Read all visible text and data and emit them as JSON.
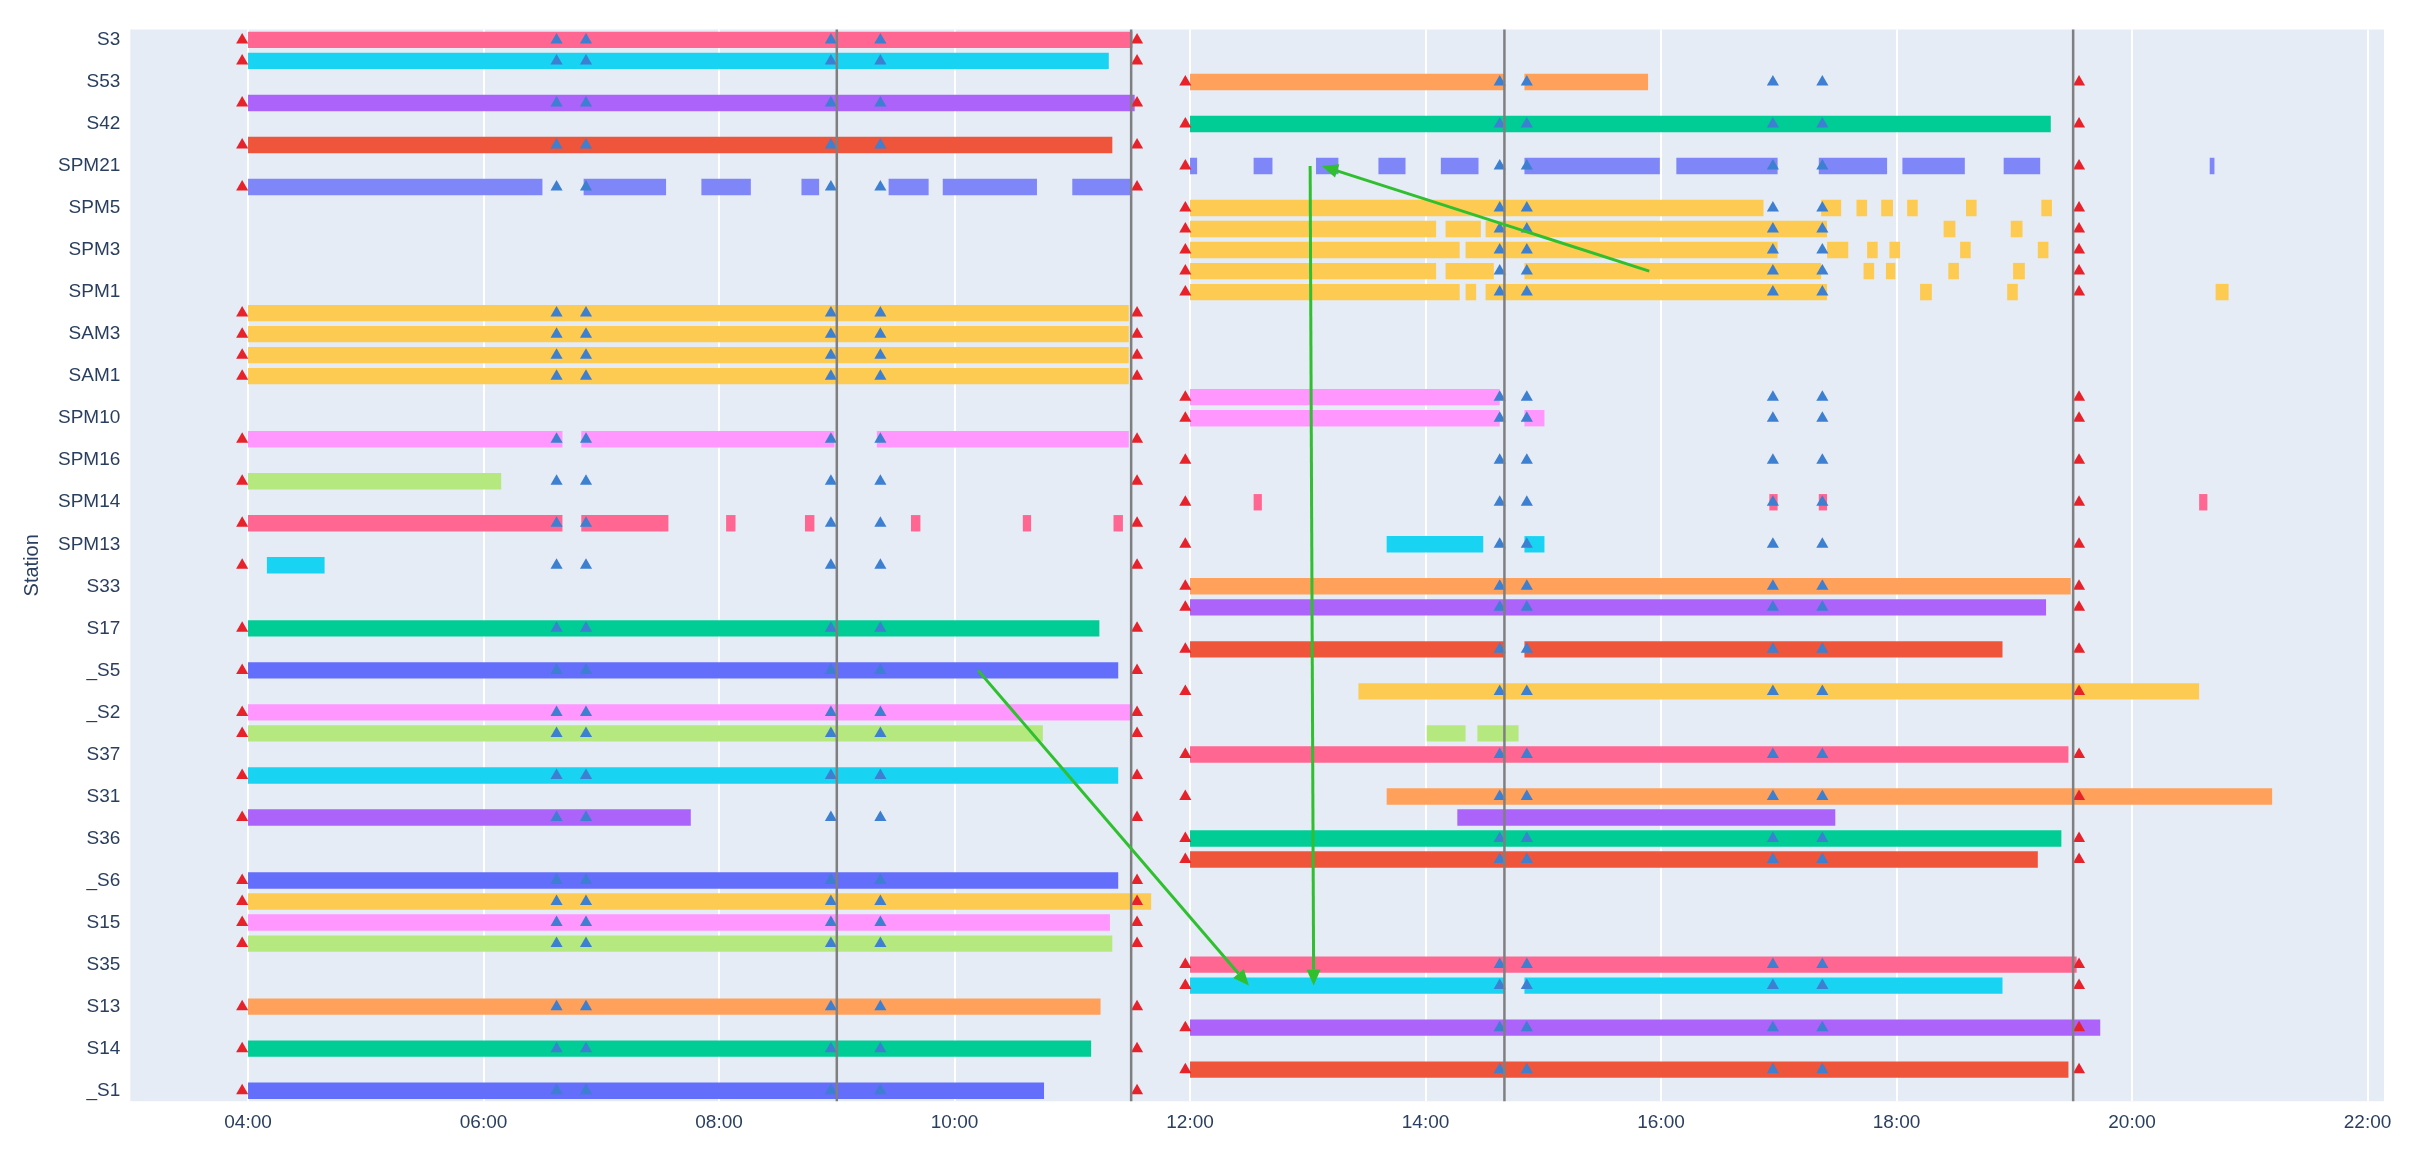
{
  "chart_data": {
    "type": "bar",
    "orientation": "horizontal",
    "ylabel": "Station",
    "grid": "x",
    "categories": [
      "S3",
      null,
      "S53",
      null,
      "S42",
      null,
      "SPM21",
      null,
      "SPM5",
      null,
      "SPM3",
      null,
      "SPM1",
      null,
      "SAM3",
      null,
      "SAM1",
      null,
      "SPM10",
      null,
      "SPM16",
      null,
      "SPM14",
      null,
      "SPM13",
      null,
      "S33",
      null,
      "S17",
      null,
      "_S5",
      null,
      "_S2",
      null,
      "S37",
      null,
      "S31",
      null,
      "S36",
      null,
      "_S6",
      null,
      "S15",
      null,
      "S35",
      null,
      "S13",
      null,
      "S14",
      null,
      "_S1"
    ],
    "xlim": [
      3,
      22.14
    ],
    "xticks": [
      {
        "value": 4,
        "label": "04:00"
      },
      {
        "value": 6,
        "label": "06:00"
      },
      {
        "value": 8,
        "label": "08:00"
      },
      {
        "value": 10,
        "label": "10:00"
      },
      {
        "value": 12,
        "label": "12:00"
      },
      {
        "value": 14,
        "label": "14:00"
      },
      {
        "value": 16,
        "label": "16:00"
      },
      {
        "value": 18,
        "label": "18:00"
      },
      {
        "value": 20,
        "label": "20:00"
      },
      {
        "value": 22,
        "label": "22:00"
      }
    ],
    "ref_lines": [
      {
        "axis": "x",
        "value": 9,
        "color": "#7f7f7f"
      },
      {
        "axis": "x",
        "value": 11.5,
        "color": "#7f7f7f"
      },
      {
        "axis": "x",
        "value": 14.67,
        "color": "#7f7f7f"
      },
      {
        "axis": "x",
        "value": 19.5,
        "color": "#7f7f7f"
      }
    ],
    "series": [
      {
        "base": [
          4,
          4,
          12,
          4,
          12,
          4,
          12,
          4,
          12,
          12,
          12,
          12,
          12,
          4,
          4,
          4,
          4,
          12,
          12,
          4,
          null,
          4,
          12.54,
          4,
          13.67,
          4.16,
          12,
          12,
          4,
          12,
          4,
          13.43,
          4,
          4,
          12,
          4,
          13.67,
          4,
          12,
          12,
          4,
          4,
          4,
          4,
          12,
          12,
          4,
          12,
          4,
          12,
          4
        ],
        "values": [
          7.51,
          7.31,
          2.67,
          7.53,
          7.31,
          7.34,
          0.06,
          2.5,
          4.87,
          2.09,
          2.29,
          2.09,
          2.29,
          7.48,
          7.48,
          7.48,
          7.48,
          2.63,
          2.63,
          2.67,
          null,
          2.15,
          0.07,
          2.67,
          0.82,
          0.49,
          7.48,
          7.27,
          7.23,
          2.67,
          7.39,
          7.14,
          7.51,
          6.75,
          7.46,
          7.39,
          7.52,
          3.76,
          7.4,
          7.2,
          7.39,
          7.67,
          7.32,
          7.34,
          7.53,
          2.67,
          7.24,
          7.73,
          7.16,
          7.46,
          6.76
        ],
        "colors": [
          "#ff6692",
          "#19d3f3",
          "#ffa15a",
          "#ab63fa",
          "#00cc96",
          "#ef553b",
          "#7f87f8",
          "#7f87f8",
          "#fecb52",
          "#fecb52",
          "#fecb52",
          "#fecb52",
          "#fecb52",
          "#fecb52",
          "#fecb52",
          "#fecb52",
          "#fecb52",
          "#ff97ff",
          "#ff97ff",
          "#ff97ff",
          null,
          "#b6e880",
          "#ff6692",
          "#ff6692",
          "#19d3f3",
          "#19d3f3",
          "#ffa15a",
          "#ab63fa",
          "#00cc96",
          "#ef553b",
          "#636efa",
          "#fecb52",
          "#ff97ff",
          "#b6e880",
          "#ff6692",
          "#19d3f3",
          "#ffa15a",
          "#ab63fa",
          "#00cc96",
          "#ef553b",
          "#636efa",
          "#fecb52",
          "#ff97ff",
          "#b6e880",
          "#ff6692",
          "#19d3f3",
          "#ffa15a",
          "#ab63fa",
          "#00cc96",
          "#ef553b",
          "#636efa"
        ]
      },
      {
        "base": [
          null,
          null,
          14.84,
          null,
          null,
          null,
          12.54,
          6.85,
          17.36,
          14.17,
          14.34,
          14.17,
          14.34,
          null,
          null,
          null,
          null,
          null,
          14.84,
          6.83,
          null,
          null,
          16.92,
          6.83,
          14.84,
          null,
          null,
          null,
          null,
          14.84,
          null,
          null,
          null,
          14.01,
          null,
          null,
          null,
          14.27,
          null,
          null,
          null,
          null,
          null,
          null,
          null,
          14.84,
          null,
          null,
          null,
          null,
          null
        ],
        "values": [
          null,
          null,
          1.05,
          null,
          null,
          null,
          0.16,
          0.7,
          0.17,
          0.3,
          2.65,
          0.41,
          0.09,
          null,
          null,
          null,
          null,
          null,
          0.17,
          2.15,
          null,
          null,
          0.07,
          0.74,
          0.17,
          null,
          null,
          null,
          null,
          4.06,
          null,
          null,
          null,
          0.33,
          null,
          null,
          null,
          3.21,
          null,
          null,
          null,
          null,
          null,
          null,
          null,
          4.06,
          null,
          null,
          null,
          null,
          null
        ],
        "colors": [
          null,
          null,
          "#ffa15a",
          null,
          null,
          null,
          "#7f87f8",
          "#7f87f8",
          "#fecb52",
          "#fecb52",
          "#fecb52",
          "#fecb52",
          "#fecb52",
          null,
          null,
          null,
          null,
          null,
          "#ff97ff",
          "#ff97ff",
          null,
          null,
          "#ff6692",
          "#ff6692",
          "#19d3f3",
          null,
          null,
          null,
          null,
          "#ef553b",
          null,
          null,
          null,
          "#b6e880",
          null,
          null,
          null,
          "#ab63fa",
          null,
          null,
          null,
          null,
          null,
          null,
          null,
          "#19d3f3",
          null,
          null,
          null,
          null,
          null
        ]
      },
      {
        "base": [
          null,
          null,
          null,
          null,
          null,
          null,
          13.07,
          7.85,
          17.66,
          14.51,
          17.41,
          14.84,
          14.51,
          null,
          null,
          null,
          null,
          null,
          null,
          9.34,
          null,
          null,
          17.34,
          8.06,
          null,
          null,
          null,
          null,
          null,
          null,
          null,
          null,
          null,
          14.44,
          null,
          null,
          null,
          null,
          null,
          null,
          null,
          null,
          null,
          null,
          null,
          null,
          null,
          null,
          null,
          null,
          null
        ],
        "values": [
          null,
          null,
          null,
          null,
          null,
          null,
          0.19,
          0.42,
          0.09,
          2.9,
          0.18,
          2.52,
          2.9,
          null,
          null,
          null,
          null,
          null,
          null,
          2.14,
          null,
          null,
          0.07,
          0.08,
          null,
          null,
          null,
          null,
          null,
          null,
          null,
          null,
          null,
          0.35,
          null,
          null,
          null,
          null,
          null,
          null,
          null,
          null,
          null,
          null,
          null,
          null,
          null,
          null,
          null,
          null,
          null
        ],
        "colors": [
          null,
          null,
          null,
          null,
          null,
          null,
          "#7f87f8",
          "#7f87f8",
          "#fecb52",
          "#fecb52",
          "#fecb52",
          "#fecb52",
          "#fecb52",
          null,
          null,
          null,
          null,
          null,
          null,
          "#ff97ff",
          null,
          null,
          "#ff6692",
          "#ff6692",
          null,
          null,
          null,
          null,
          null,
          null,
          null,
          null,
          null,
          "#b6e880",
          null,
          null,
          null,
          null,
          null,
          null,
          null,
          null,
          null,
          null,
          null,
          null,
          null,
          null,
          null,
          null,
          null
        ]
      },
      {
        "base": [
          null,
          null,
          null,
          null,
          null,
          null,
          13.6,
          8.7,
          17.87,
          18.4,
          17.75,
          17.72,
          18.2,
          null,
          null,
          null,
          null,
          null,
          null,
          null,
          null,
          null,
          20.57,
          8.73,
          null,
          null,
          null,
          null,
          null,
          null,
          null,
          null,
          null,
          null,
          null,
          null,
          null,
          null,
          null,
          null,
          null,
          null,
          null,
          null,
          null,
          null,
          null,
          null,
          null,
          null,
          null
        ],
        "values": [
          null,
          null,
          null,
          null,
          null,
          null,
          0.23,
          0.15,
          0.1,
          0.1,
          0.09,
          0.09,
          0.1,
          null,
          null,
          null,
          null,
          null,
          null,
          null,
          null,
          null,
          0.07,
          0.08,
          null,
          null,
          null,
          null,
          null,
          null,
          null,
          null,
          null,
          null,
          null,
          null,
          null,
          null,
          null,
          null,
          null,
          null,
          null,
          null,
          null,
          null,
          null,
          null,
          null,
          null,
          null
        ],
        "colors": [
          null,
          null,
          null,
          null,
          null,
          null,
          "#7f87f8",
          "#7f87f8",
          "#fecb52",
          "#fecb52",
          "#fecb52",
          "#fecb52",
          "#fecb52",
          null,
          null,
          null,
          null,
          null,
          null,
          null,
          null,
          null,
          "#ff6692",
          "#ff6692",
          null,
          null,
          null,
          null,
          null,
          null,
          null,
          null,
          null,
          null,
          null,
          null,
          null,
          null,
          null,
          null,
          null,
          null,
          null,
          null,
          null,
          null,
          null,
          null,
          null,
          null,
          null
        ]
      },
      {
        "base": [
          null,
          null,
          null,
          null,
          null,
          null,
          14.13,
          9.44,
          18.09,
          18.97,
          17.94,
          17.91,
          18.94,
          null,
          null,
          null,
          null,
          null,
          null,
          null,
          null,
          null,
          null,
          9.63,
          null,
          null,
          null,
          null,
          null,
          null,
          null,
          null,
          null,
          null,
          null,
          null,
          null,
          null,
          null,
          null,
          null,
          null,
          null,
          null,
          null,
          null,
          null,
          null,
          null,
          null,
          null
        ],
        "values": [
          null,
          null,
          null,
          null,
          null,
          null,
          0.32,
          0.34,
          0.09,
          0.1,
          0.09,
          0.08,
          0.09,
          null,
          null,
          null,
          null,
          null,
          null,
          null,
          null,
          null,
          null,
          0.08,
          null,
          null,
          null,
          null,
          null,
          null,
          null,
          null,
          null,
          null,
          null,
          null,
          null,
          null,
          null,
          null,
          null,
          null,
          null,
          null,
          null,
          null,
          null,
          null,
          null,
          null,
          null
        ],
        "colors": [
          null,
          null,
          null,
          null,
          null,
          null,
          "#7f87f8",
          "#7f87f8",
          "#fecb52",
          "#fecb52",
          "#fecb52",
          "#fecb52",
          "#fecb52",
          null,
          null,
          null,
          null,
          null,
          null,
          null,
          null,
          null,
          null,
          "#ff6692",
          null,
          null,
          null,
          null,
          null,
          null,
          null,
          null,
          null,
          null,
          null,
          null,
          null,
          null,
          null,
          null,
          null,
          null,
          null,
          null,
          null,
          null,
          null,
          null,
          null,
          null,
          null
        ]
      },
      {
        "base": [
          null,
          null,
          null,
          null,
          null,
          null,
          14.84,
          9.9,
          18.59,
          null,
          18.54,
          18.44,
          20.71,
          null,
          null,
          null,
          null,
          null,
          null,
          null,
          null,
          null,
          null,
          10.58,
          null,
          null,
          null,
          null,
          null,
          null,
          null,
          null,
          null,
          null,
          null,
          null,
          null,
          null,
          null,
          null,
          null,
          null,
          null,
          null,
          null,
          null,
          null,
          null,
          null,
          null,
          null
        ],
        "values": [
          null,
          null,
          null,
          null,
          null,
          null,
          1.15,
          0.8,
          0.09,
          null,
          0.09,
          0.09,
          0.11,
          null,
          null,
          null,
          null,
          null,
          null,
          null,
          null,
          null,
          null,
          0.07,
          null,
          null,
          null,
          null,
          null,
          null,
          null,
          null,
          null,
          null,
          null,
          null,
          null,
          null,
          null,
          null,
          null,
          null,
          null,
          null,
          null,
          null,
          null,
          null,
          null,
          null,
          null
        ],
        "colors": [
          null,
          null,
          null,
          null,
          null,
          null,
          "#7f87f8",
          "#7f87f8",
          "#fecb52",
          null,
          "#fecb52",
          "#fecb52",
          "#fecb52",
          null,
          null,
          null,
          null,
          null,
          null,
          null,
          null,
          null,
          null,
          "#ff6692",
          null,
          null,
          null,
          null,
          null,
          null,
          null,
          null,
          null,
          null,
          null,
          null,
          null,
          null,
          null,
          null,
          null,
          null,
          null,
          null,
          null,
          null,
          null,
          null,
          null,
          null,
          null
        ]
      },
      {
        "base": [
          null,
          null,
          null,
          null,
          null,
          null,
          16.13,
          11,
          19.23,
          null,
          19.2,
          18.99,
          null,
          null,
          null,
          null,
          null,
          null,
          null,
          null,
          null,
          null,
          null,
          11.35,
          null,
          null,
          null,
          null,
          null,
          null,
          null,
          null,
          null,
          null,
          null,
          null,
          null,
          null,
          null,
          null,
          null,
          null,
          null,
          null,
          null,
          null,
          null,
          null,
          null,
          null,
          null
        ],
        "values": [
          null,
          null,
          null,
          null,
          null,
          null,
          0.86,
          0.5,
          0.09,
          null,
          0.09,
          0.1,
          null,
          null,
          null,
          null,
          null,
          null,
          null,
          null,
          null,
          null,
          null,
          0.08,
          null,
          null,
          null,
          null,
          null,
          null,
          null,
          null,
          null,
          null,
          null,
          null,
          null,
          null,
          null,
          null,
          null,
          null,
          null,
          null,
          null,
          null,
          null,
          null,
          null,
          null,
          null
        ],
        "colors": [
          null,
          null,
          null,
          null,
          null,
          null,
          "#7f87f8",
          "#7f87f8",
          "#fecb52",
          null,
          "#fecb52",
          "#fecb52",
          null,
          null,
          null,
          null,
          null,
          null,
          null,
          null,
          null,
          null,
          null,
          "#ff6692",
          null,
          null,
          null,
          null,
          null,
          null,
          null,
          null,
          null,
          null,
          null,
          null,
          null,
          null,
          null,
          null,
          null,
          null,
          null,
          null,
          null,
          null,
          null,
          null,
          null,
          null,
          null
        ]
      },
      {
        "color": "#7f87f8",
        "base": [
          null,
          null,
          null,
          null,
          null,
          null,
          17.34,
          null,
          null,
          null,
          null,
          null,
          null,
          null,
          null,
          null,
          null,
          null,
          null,
          null,
          null,
          null,
          null,
          null,
          null,
          null,
          null,
          null,
          null,
          null,
          null,
          null,
          null,
          null,
          null,
          null,
          null,
          null,
          null,
          null,
          null,
          null,
          null,
          null,
          null,
          null,
          null,
          null,
          null,
          null,
          null
        ],
        "values": [
          null,
          null,
          null,
          null,
          null,
          null,
          0.58,
          null,
          null,
          null,
          null,
          null,
          null,
          null,
          null,
          null,
          null,
          null,
          null,
          null,
          null,
          null,
          null,
          null,
          null,
          null,
          null,
          null,
          null,
          null,
          null,
          null,
          null,
          null,
          null,
          null,
          null,
          null,
          null,
          null,
          null,
          null,
          null,
          null,
          null,
          null,
          null,
          null,
          null,
          null,
          null
        ]
      },
      {
        "color": "#7f87f8",
        "base": [
          null,
          null,
          null,
          null,
          null,
          null,
          18.05,
          null,
          null,
          null,
          null,
          null,
          null,
          null,
          null,
          null,
          null,
          null,
          null,
          null,
          null,
          null,
          null,
          null,
          null,
          null,
          null,
          null,
          null,
          null,
          null,
          null,
          null,
          null,
          null,
          null,
          null,
          null,
          null,
          null,
          null,
          null,
          null,
          null,
          null,
          null,
          null,
          null,
          null,
          null,
          null
        ],
        "values": [
          null,
          null,
          null,
          null,
          null,
          null,
          0.53,
          null,
          null,
          null,
          null,
          null,
          null,
          null,
          null,
          null,
          null,
          null,
          null,
          null,
          null,
          null,
          null,
          null,
          null,
          null,
          null,
          null,
          null,
          null,
          null,
          null,
          null,
          null,
          null,
          null,
          null,
          null,
          null,
          null,
          null,
          null,
          null,
          null,
          null,
          null,
          null,
          null,
          null,
          null,
          null
        ]
      },
      {
        "color": "#7f87f8",
        "base": [
          null,
          null,
          null,
          null,
          null,
          null,
          18.91,
          null,
          null,
          null,
          null,
          null,
          null,
          null,
          null,
          null,
          null,
          null,
          null,
          null,
          null,
          null,
          null,
          null,
          null,
          null,
          null,
          null,
          null,
          null,
          null,
          null,
          null,
          null,
          null,
          null,
          null,
          null,
          null,
          null,
          null,
          null,
          null,
          null,
          null,
          null,
          null,
          null,
          null,
          null,
          null
        ],
        "values": [
          null,
          null,
          null,
          null,
          null,
          null,
          0.31,
          null,
          null,
          null,
          null,
          null,
          null,
          null,
          null,
          null,
          null,
          null,
          null,
          null,
          null,
          null,
          null,
          null,
          null,
          null,
          null,
          null,
          null,
          null,
          null,
          null,
          null,
          null,
          null,
          null,
          null,
          null,
          null,
          null,
          null,
          null,
          null,
          null,
          null,
          null,
          null,
          null,
          null,
          null,
          null
        ]
      },
      {
        "color": "#7f87f8",
        "base": [
          null,
          null,
          null,
          null,
          null,
          null,
          20.66,
          null,
          null,
          null,
          null,
          null,
          null,
          null,
          null,
          null,
          null,
          null,
          null,
          null,
          null,
          null,
          null,
          null,
          null,
          null,
          null,
          null,
          null,
          null,
          null,
          null,
          null,
          null,
          null,
          null,
          null,
          null,
          null,
          null,
          null,
          null,
          null,
          null,
          null,
          null,
          null,
          null,
          null,
          null,
          null
        ],
        "values": [
          null,
          null,
          null,
          null,
          null,
          null,
          0.04,
          null,
          null,
          null,
          null,
          null,
          null,
          null,
          null,
          null,
          null,
          null,
          null,
          null,
          null,
          null,
          null,
          null,
          null,
          null,
          null,
          null,
          null,
          null,
          null,
          null,
          null,
          null,
          null,
          null,
          null,
          null,
          null,
          null,
          null,
          null,
          null,
          null,
          null,
          null,
          null,
          null,
          null,
          null,
          null
        ]
      },
      {
        "type": "scatter",
        "marker": "triangle",
        "color": "#e8222a",
        "values": [
          3.95,
          3.95,
          null,
          3.95,
          null,
          3.95,
          null,
          3.95,
          null,
          null,
          null,
          null,
          null,
          3.95,
          3.95,
          3.95,
          3.95,
          null,
          null,
          3.95,
          null,
          3.95,
          null,
          3.95,
          null,
          3.95,
          null,
          null,
          3.95,
          null,
          3.95,
          null,
          3.95,
          3.95,
          null,
          3.95,
          null,
          3.95,
          null,
          null,
          3.95,
          3.95,
          3.95,
          3.95,
          null,
          null,
          3.95,
          null,
          3.95,
          null,
          3.95
        ]
      },
      {
        "type": "scatter",
        "marker": "triangle",
        "color": "#e8222a",
        "values": [
          11.55,
          11.55,
          null,
          11.55,
          null,
          11.55,
          null,
          11.55,
          null,
          null,
          null,
          null,
          null,
          11.55,
          11.55,
          11.55,
          11.55,
          null,
          null,
          11.55,
          null,
          11.55,
          null,
          11.55,
          null,
          11.55,
          null,
          null,
          11.55,
          null,
          11.55,
          null,
          11.55,
          11.55,
          null,
          11.55,
          null,
          11.55,
          null,
          null,
          11.55,
          11.55,
          11.55,
          11.55,
          null,
          null,
          11.55,
          null,
          11.55,
          null,
          11.55
        ]
      },
      {
        "type": "scatter",
        "marker": "triangle",
        "color": "#3d7fd0",
        "values": [
          6.62,
          6.62,
          null,
          6.62,
          null,
          6.62,
          null,
          6.62,
          null,
          null,
          null,
          null,
          null,
          6.62,
          6.62,
          6.62,
          6.62,
          null,
          null,
          6.62,
          null,
          6.62,
          null,
          6.62,
          null,
          6.62,
          null,
          null,
          6.62,
          null,
          6.62,
          null,
          6.62,
          6.62,
          null,
          6.62,
          null,
          6.62,
          null,
          null,
          6.62,
          6.62,
          6.62,
          6.62,
          null,
          null,
          6.62,
          null,
          6.62,
          null,
          6.62
        ]
      },
      {
        "type": "scatter",
        "marker": "triangle",
        "color": "#3d7fd0",
        "values": [
          6.87,
          6.87,
          null,
          6.87,
          null,
          6.87,
          null,
          6.87,
          null,
          null,
          null,
          null,
          null,
          6.87,
          6.87,
          6.87,
          6.87,
          null,
          null,
          6.87,
          null,
          6.87,
          null,
          6.87,
          null,
          6.87,
          null,
          null,
          6.87,
          null,
          6.87,
          null,
          6.87,
          6.87,
          null,
          6.87,
          null,
          6.87,
          null,
          null,
          6.87,
          6.87,
          6.87,
          6.87,
          null,
          null,
          6.87,
          null,
          6.87,
          null,
          6.87
        ]
      },
      {
        "type": "scatter",
        "marker": "triangle",
        "color": "#3d7fd0",
        "values": [
          8.95,
          8.95,
          null,
          8.95,
          null,
          8.95,
          null,
          8.95,
          null,
          null,
          null,
          null,
          null,
          8.95,
          8.95,
          8.95,
          8.95,
          null,
          null,
          8.95,
          null,
          8.95,
          null,
          8.95,
          null,
          8.95,
          null,
          null,
          8.95,
          null,
          8.95,
          null,
          8.95,
          8.95,
          null,
          8.95,
          null,
          8.95,
          null,
          null,
          8.95,
          8.95,
          8.95,
          8.95,
          null,
          null,
          8.95,
          null,
          8.95,
          null,
          8.95
        ]
      },
      {
        "type": "scatter",
        "marker": "triangle",
        "color": "#3d7fd0",
        "values": [
          9.37,
          9.37,
          null,
          9.37,
          null,
          9.37,
          null,
          9.37,
          null,
          null,
          null,
          null,
          null,
          9.37,
          9.37,
          9.37,
          9.37,
          null,
          null,
          9.37,
          null,
          9.37,
          null,
          9.37,
          null,
          9.37,
          null,
          null,
          9.37,
          null,
          9.37,
          null,
          9.37,
          9.37,
          null,
          9.37,
          null,
          9.37,
          null,
          null,
          9.37,
          9.37,
          9.37,
          9.37,
          null,
          null,
          9.37,
          null,
          9.37,
          null,
          9.37
        ]
      },
      {
        "type": "scatter",
        "marker": "triangle",
        "color": "#e8222a",
        "values": [
          null,
          null,
          11.96,
          null,
          11.96,
          null,
          11.96,
          null,
          11.96,
          11.96,
          11.96,
          11.96,
          11.96,
          null,
          null,
          null,
          null,
          11.96,
          11.96,
          null,
          11.96,
          null,
          11.96,
          null,
          11.96,
          null,
          11.96,
          11.96,
          null,
          11.96,
          null,
          11.96,
          null,
          null,
          11.96,
          null,
          11.96,
          null,
          11.96,
          11.96,
          null,
          null,
          null,
          null,
          11.96,
          11.96,
          null,
          11.96,
          null,
          11.96,
          null
        ]
      },
      {
        "type": "scatter",
        "marker": "triangle",
        "color": "#e8222a",
        "values": [
          null,
          null,
          19.55,
          null,
          19.55,
          null,
          19.55,
          null,
          19.55,
          19.55,
          19.55,
          19.55,
          19.55,
          null,
          null,
          null,
          null,
          19.55,
          19.55,
          null,
          19.55,
          null,
          19.55,
          null,
          19.55,
          null,
          19.55,
          19.55,
          null,
          19.55,
          null,
          19.55,
          null,
          null,
          19.55,
          null,
          19.55,
          null,
          19.55,
          19.55,
          null,
          null,
          null,
          null,
          19.55,
          19.55,
          null,
          19.55,
          null,
          19.55,
          null
        ]
      },
      {
        "type": "scatter",
        "marker": "triangle",
        "color": "#3d7fd0",
        "values": [
          null,
          null,
          14.63,
          null,
          14.63,
          null,
          14.63,
          null,
          14.63,
          14.63,
          14.63,
          14.63,
          14.63,
          null,
          null,
          null,
          null,
          14.63,
          14.63,
          null,
          14.63,
          null,
          14.63,
          null,
          14.63,
          null,
          14.63,
          14.63,
          null,
          14.63,
          null,
          14.63,
          null,
          null,
          14.63,
          null,
          14.63,
          null,
          14.63,
          14.63,
          null,
          null,
          null,
          null,
          14.63,
          14.63,
          null,
          14.63,
          null,
          14.63,
          null
        ]
      },
      {
        "type": "scatter",
        "marker": "triangle",
        "color": "#3d7fd0",
        "values": [
          null,
          null,
          14.86,
          null,
          14.86,
          null,
          14.86,
          null,
          14.86,
          14.86,
          14.86,
          14.86,
          14.86,
          null,
          null,
          null,
          null,
          14.86,
          14.86,
          null,
          14.86,
          null,
          14.86,
          null,
          14.86,
          null,
          14.86,
          14.86,
          null,
          14.86,
          null,
          14.86,
          null,
          null,
          14.86,
          null,
          14.86,
          null,
          14.86,
          14.86,
          null,
          null,
          null,
          null,
          14.86,
          14.86,
          null,
          14.86,
          null,
          14.86,
          null
        ]
      },
      {
        "type": "scatter",
        "marker": "triangle",
        "color": "#3d7fd0",
        "values": [
          null,
          null,
          16.95,
          null,
          16.95,
          null,
          16.95,
          null,
          16.95,
          16.95,
          16.95,
          16.95,
          16.95,
          null,
          null,
          null,
          null,
          16.95,
          16.95,
          null,
          16.95,
          null,
          16.95,
          null,
          16.95,
          null,
          16.95,
          16.95,
          null,
          16.95,
          null,
          16.95,
          null,
          null,
          16.95,
          null,
          16.95,
          null,
          16.95,
          16.95,
          null,
          null,
          null,
          null,
          16.95,
          16.95,
          null,
          16.95,
          null,
          16.95,
          null
        ]
      },
      {
        "type": "scatter",
        "marker": "triangle",
        "color": "#3d7fd0",
        "values": [
          null,
          null,
          17.37,
          null,
          17.37,
          null,
          17.37,
          null,
          17.37,
          17.37,
          17.37,
          17.37,
          17.37,
          null,
          null,
          null,
          null,
          17.37,
          17.37,
          null,
          17.37,
          null,
          17.37,
          null,
          17.37,
          null,
          17.37,
          17.37,
          null,
          17.37,
          null,
          17.37,
          null,
          null,
          17.37,
          null,
          17.37,
          null,
          17.37,
          17.37,
          null,
          null,
          null,
          null,
          17.37,
          17.37,
          null,
          17.37,
          null,
          17.37,
          null
        ]
      }
    ]
  }
}
